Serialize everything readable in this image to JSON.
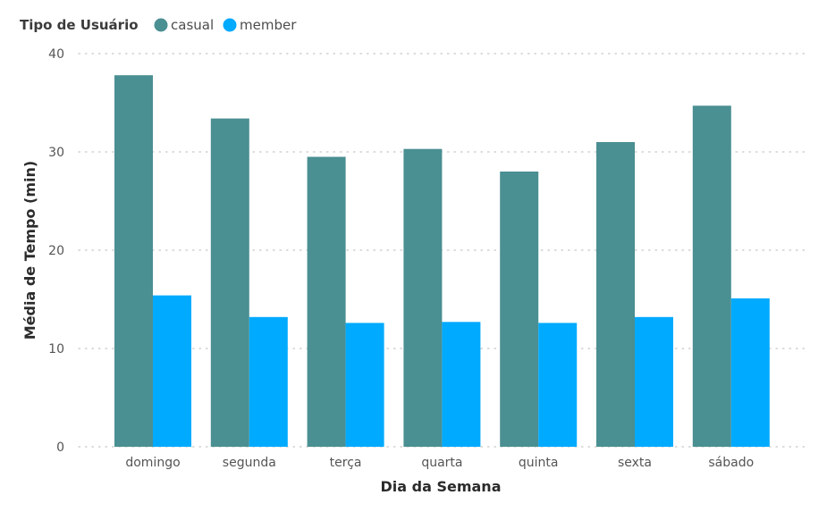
{
  "legend": {
    "title": "Tipo de Usuário",
    "items": [
      {
        "label": "casual",
        "color": "#4a8f92"
      },
      {
        "label": "member",
        "color": "#00aaff"
      }
    ]
  },
  "chart_data": {
    "type": "bar",
    "xlabel": "Dia da Semana",
    "ylabel": "Média de Tempo (min)",
    "ylim": [
      0,
      40
    ],
    "yticks": [
      "0",
      "10",
      "20",
      "30",
      "40"
    ],
    "grid": true,
    "legend_position": "top-left",
    "categories": [
      "domingo",
      "segunda",
      "terça",
      "quarta",
      "quinta",
      "sexta",
      "sábado"
    ],
    "series": [
      {
        "name": "casual",
        "color": "#4a8f92",
        "values": [
          37.8,
          33.4,
          29.5,
          30.3,
          28.0,
          31.0,
          34.7
        ]
      },
      {
        "name": "member",
        "color": "#00aaff",
        "values": [
          15.4,
          13.2,
          12.6,
          12.7,
          12.6,
          13.2,
          15.1
        ]
      }
    ]
  }
}
